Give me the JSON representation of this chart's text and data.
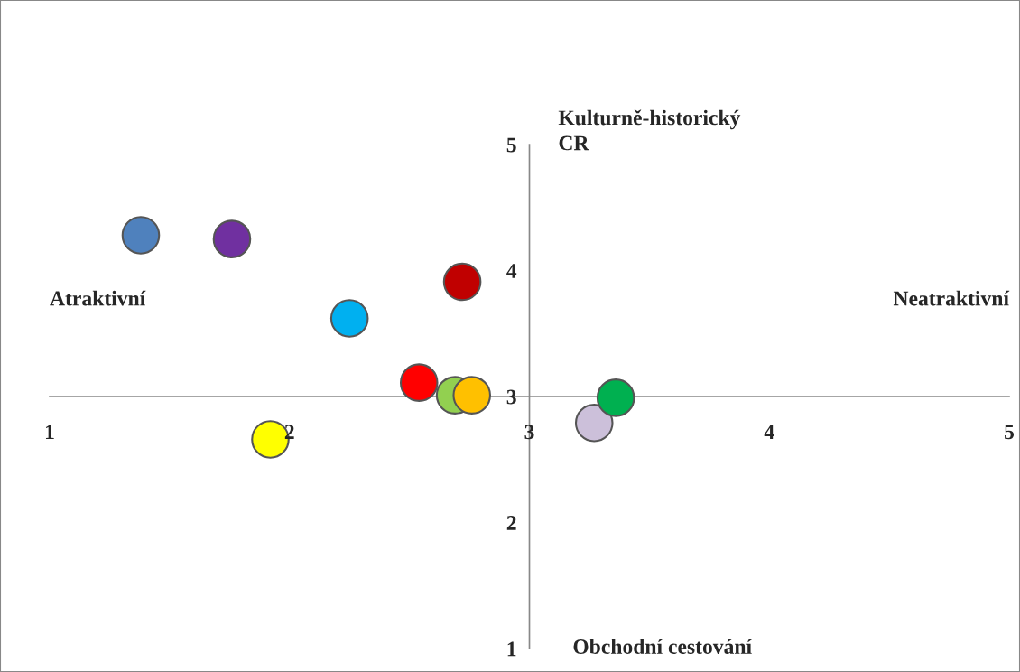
{
  "chart_data": {
    "type": "scatter",
    "marker": "circle",
    "x": [
      1.38,
      1.76,
      2.25,
      2.72,
      2.54,
      2.69,
      2.76,
      1.92,
      3.27,
      3.36
    ],
    "values": [
      4.28,
      4.25,
      3.62,
      3.91,
      3.11,
      3.01,
      3.01,
      2.66,
      2.79,
      2.99
    ],
    "colors": [
      "#4f81bd",
      "#7030a0",
      "#00b0f0",
      "#c00000",
      "#ff0000",
      "#92d050",
      "#ffc000",
      "#ffff00",
      "#ccc0da",
      "#00b050"
    ],
    "xlim": [
      1,
      5
    ],
    "ylim": [
      1,
      5
    ],
    "xticks": [
      1,
      2,
      3,
      4,
      5
    ],
    "yticks": [
      1,
      2,
      3,
      4,
      5
    ],
    "grid": false,
    "annotations": [
      "Atraktivní",
      "Neatraktivní",
      "Kulturně-historický\nCR",
      "Obchodní cestování"
    ]
  }
}
